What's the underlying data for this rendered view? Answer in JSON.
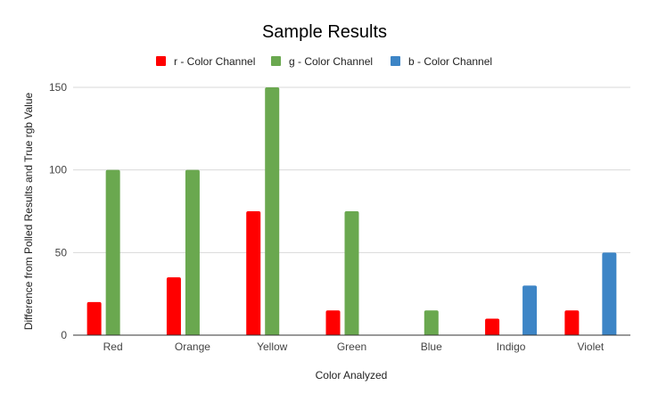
{
  "chart_data": {
    "type": "bar",
    "title": "Sample Results",
    "xlabel": "Color Analyzed",
    "ylabel": "Difference from Polled Results and True rgb Value",
    "categories": [
      "Red",
      "Orange",
      "Yellow",
      "Green",
      "Blue",
      "Indigo",
      "Violet"
    ],
    "series": [
      {
        "name": "r - Color Channel",
        "color": "#ff0000",
        "values": [
          20,
          35,
          75,
          15,
          0,
          10,
          15
        ]
      },
      {
        "name": "g - Color Channel",
        "color": "#6aa84f",
        "values": [
          100,
          100,
          150,
          75,
          15,
          0,
          0
        ]
      },
      {
        "name": "b - Color Channel",
        "color": "#3d85c6",
        "values": [
          0,
          0,
          0,
          0,
          0,
          30,
          50
        ]
      }
    ],
    "ylim": [
      0,
      150
    ],
    "yticks": [
      0,
      50,
      100,
      150
    ],
    "grid": true,
    "legend_position": "top"
  }
}
